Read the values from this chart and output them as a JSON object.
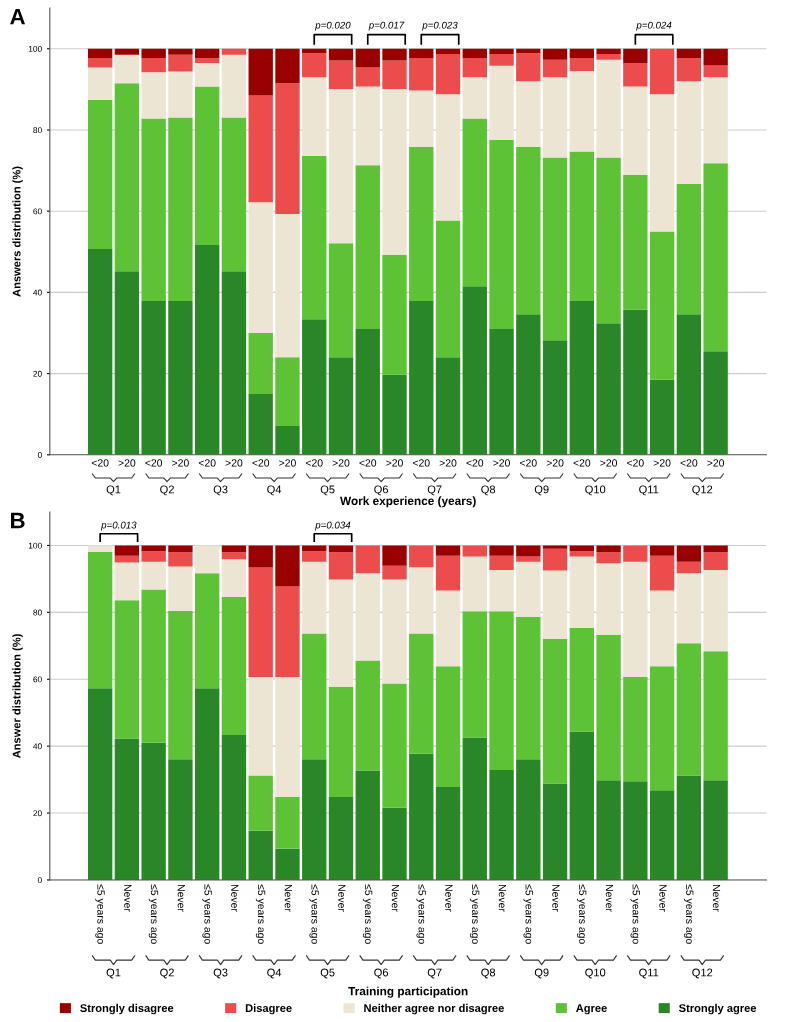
{
  "chart_data": [
    {
      "type": "bar",
      "stacked": true,
      "title": "A",
      "xlabel": "Work experience (years)",
      "ylabel": "Answers distribution (%)",
      "categories": [
        "<20",
        ">20",
        "<20",
        ">20",
        "<20",
        ">20",
        "<20",
        ">20",
        "<20",
        ">20",
        "<20",
        ">20",
        "<20",
        ">20",
        "<20",
        ">20",
        "<20",
        ">20",
        "<20",
        ">20",
        "<20",
        ">20",
        "<20",
        ">20"
      ],
      "ylim": [
        0,
        110
      ],
      "yticks": [
        0,
        20,
        40,
        60,
        80,
        100
      ],
      "grid": "y",
      "legend": false,
      "annotations": [
        "Q1",
        "Q2",
        "Q3",
        "Q4",
        "Q5",
        "Q6",
        "Q7",
        "Q8",
        "Q9",
        "Q10",
        "Q11",
        "Q12",
        "p=0.020",
        "p=0.017",
        "p=0.023",
        "p=0.024"
      ],
      "series": [
        {
          "color": "#2a8728",
          "values": [
            50.7,
            45.2,
            37.9,
            37.9,
            51.7,
            45.2,
            15.0,
            7.1,
            33.4,
            24.0,
            31.0,
            19.7,
            37.9,
            24.0,
            41.5,
            31.0,
            34.6,
            28.2,
            37.9,
            32.4,
            35.7,
            18.5,
            34.6,
            25.5
          ]
        },
        {
          "color": "#5ec236",
          "values": [
            36.7,
            46.3,
            44.9,
            45.2,
            39.0,
            37.9,
            15.0,
            16.9,
            40.2,
            28.1,
            40.3,
            29.6,
            38.0,
            33.7,
            41.3,
            46.6,
            41.3,
            45.0,
            36.8,
            40.8,
            33.3,
            36.5,
            32.1,
            46.3
          ]
        },
        {
          "color": "#ece5d3",
          "values": [
            8.0,
            7.0,
            11.4,
            11.3,
            5.8,
            15.4,
            32.2,
            35.3,
            19.4,
            38.0,
            19.4,
            40.8,
            13.8,
            31.1,
            10.2,
            18.2,
            16.1,
            19.8,
            19.8,
            24.1,
            21.7,
            33.8,
            25.3,
            21.2
          ]
        },
        {
          "color": "#ec4c4c",
          "values": [
            2.3,
            0,
            3.5,
            4.1,
            1.2,
            1.5,
            26.3,
            32.2,
            5.9,
            7.0,
            4.7,
            7.0,
            8.0,
            9.9,
            4.7,
            2.9,
            6.9,
            4.3,
            3.2,
            1.4,
            5.8,
            11.2,
            5.7,
            2.9
          ]
        },
        {
          "color": "#990000",
          "values": [
            2.3,
            1.5,
            2.3,
            1.5,
            2.3,
            0,
            11.5,
            8.5,
            1.1,
            2.9,
            4.6,
            2.9,
            2.3,
            1.3,
            2.3,
            1.3,
            1.1,
            2.7,
            2.3,
            1.3,
            3.5,
            0,
            2.3,
            4.1
          ]
        }
      ]
    },
    {
      "type": "bar",
      "stacked": true,
      "title": "B",
      "xlabel": "Training participation",
      "ylabel": "Answer distribution (%)",
      "categories": [
        "≤5 years ago",
        "Never",
        "≤5 years ago",
        "Never",
        "≤5 years ago",
        "Never",
        "≤5 years ago",
        "Never",
        "≤5 years ago",
        "Never",
        "≤5 years ago",
        "Never",
        "≤5 years ago",
        "Never",
        "≤5 years ago",
        "Never",
        "≤5 years ago",
        "Never",
        "≤5 years ago",
        "Never",
        "≤5 years ago",
        "Never",
        "≤5 years ago",
        "Never"
      ],
      "ylim": [
        0,
        110
      ],
      "yticks": [
        0,
        20,
        40,
        60,
        80,
        100
      ],
      "grid": "y",
      "legend": "bottom",
      "annotations": [
        "Q1",
        "Q2",
        "Q3",
        "Q4",
        "Q5",
        "Q6",
        "Q7",
        "Q8",
        "Q9",
        "Q10",
        "Q11",
        "Q12",
        "p=0.013",
        "p=0.034"
      ],
      "series": [
        {
          "name": "Strongly agree",
          "color": "#2a8728",
          "values": [
            57.3,
            42.3,
            41.0,
            36.1,
            57.3,
            43.3,
            14.7,
            9.3,
            36.1,
            24.8,
            32.7,
            21.6,
            37.7,
            27.8,
            42.6,
            32.9,
            36.1,
            28.8,
            44.4,
            29.8,
            29.5,
            26.8,
            31.2,
            29.8
          ]
        },
        {
          "name": "Agree",
          "color": "#5ec236",
          "values": [
            40.8,
            41.3,
            45.8,
            44.3,
            34.4,
            41.3,
            16.5,
            15.5,
            37.6,
            32.9,
            32.9,
            37.1,
            36.0,
            36.1,
            37.7,
            47.4,
            42.6,
            43.3,
            31.0,
            43.5,
            31.2,
            37.1,
            39.6,
            38.6
          ]
        },
        {
          "name": "Neither agree nor disagree",
          "color": "#ece5d3",
          "values": [
            1.9,
            11.3,
            8.3,
            13.3,
            8.3,
            11.3,
            29.5,
            35.9,
            21.4,
            32.1,
            26.1,
            31.1,
            19.8,
            22.6,
            16.4,
            12.4,
            16.4,
            20.4,
            21.3,
            21.4,
            34.4,
            22.6,
            20.9,
            24.3
          ]
        },
        {
          "name": "Disagree",
          "color": "#ec4c4c",
          "values": [
            0,
            2.0,
            3.2,
            4.3,
            0,
            2.1,
            32.7,
            27.0,
            3.2,
            8.2,
            8.3,
            4.1,
            6.5,
            10.4,
            3.3,
            4.2,
            1.6,
            6.5,
            1.6,
            3.3,
            4.9,
            10.4,
            3.4,
            5.3
          ]
        },
        {
          "name": "Strongly disagree",
          "color": "#990000",
          "values": [
            0,
            3.1,
            1.7,
            2.0,
            0,
            2.0,
            6.6,
            12.3,
            1.7,
            2.0,
            0,
            6.1,
            0,
            3.1,
            0,
            3.1,
            3.3,
            1.0,
            1.7,
            2.0,
            0,
            3.1,
            4.9,
            2.0
          ]
        }
      ]
    }
  ]
}
